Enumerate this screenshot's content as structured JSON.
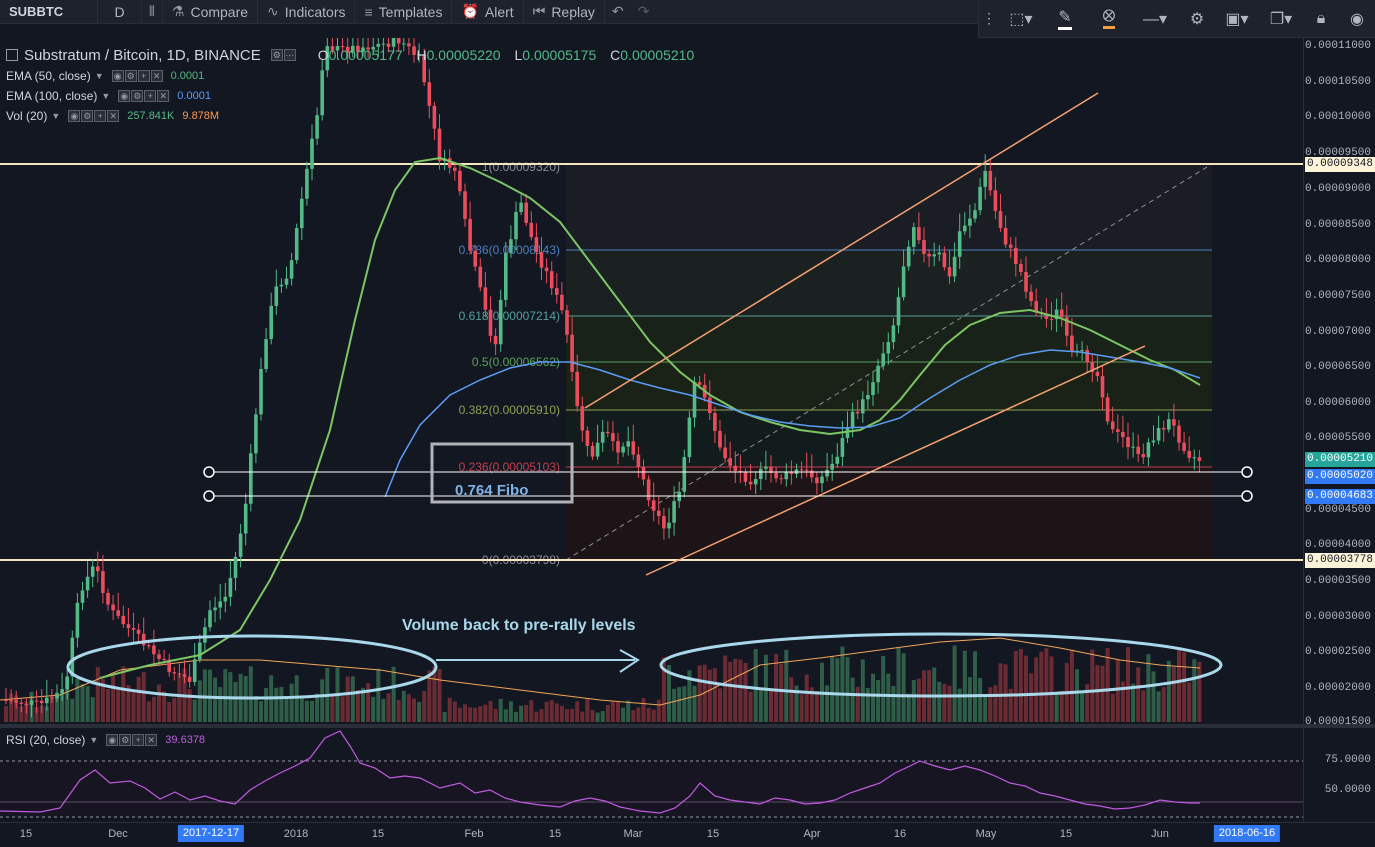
{
  "toolbar": {
    "symbol": "SUBBTC",
    "interval": "D",
    "compare": "Compare",
    "indicators": "Indicators",
    "templates": "Templates",
    "alert": "Alert",
    "replay": "Replay"
  },
  "legend": {
    "title": "Substratum / Bitcoin, 1D, BINANCE",
    "ohlc": {
      "o_key": "O",
      "o": "0.00005177",
      "h_key": "H",
      "h": "0.00005220",
      "l_key": "L",
      "l": "0.00005175",
      "c_key": "C",
      "c": "0.00005210"
    },
    "ema50": {
      "name": "EMA (50, close)",
      "value": "0.0001"
    },
    "ema100": {
      "name": "EMA (100, close)",
      "value": "0.0001"
    },
    "vol": {
      "name": "Vol (20)",
      "value1": "257.841K",
      "value2": "9.878M"
    },
    "rsi": {
      "name": "RSI (20, close)",
      "value": "39.6378"
    }
  },
  "price_axis": {
    "ticks": [
      "0.00011000",
      "0.00010500",
      "0.00010000",
      "0.00009500",
      "0.00009000",
      "0.00008500",
      "0.00008000",
      "0.00007500",
      "0.00007000",
      "0.00006500",
      "0.00006000",
      "0.00005500",
      "0.00004500",
      "0.00004000",
      "0.00003500",
      "0.00003000",
      "0.00002500",
      "0.00002000",
      "0.00001500"
    ],
    "tags": {
      "upper_line": "0.00009348",
      "last_price": "0.00005210",
      "line_a": "0.00005020",
      "line_b": "0.00004683",
      "lower_line": "0.00003778"
    }
  },
  "rsi_axis": {
    "ticks": [
      "75.0000",
      "50.0000"
    ]
  },
  "time_axis": {
    "labels": [
      "15",
      "Dec",
      "2018",
      "15",
      "Feb",
      "15",
      "Mar",
      "15",
      "Apr",
      "16",
      "May",
      "15",
      "Jun"
    ],
    "tag_left": "2017-12-17",
    "tag_right": "2018-06-16"
  },
  "fib": {
    "level_1": "1(0.00009320)",
    "level_786": "0.786(0.00008143)",
    "level_618": "0.618(0.00007214)",
    "level_5": "0.5(0.00006562)",
    "level_382": "0.382(0.00005910)",
    "level_236": "0.236(0.00005103)",
    "level_0": "0(0.00003798)"
  },
  "annotations": {
    "fibo_box": "0.764 Fibo",
    "volume_note": "Volume back to pre-rally levels"
  },
  "colors": {
    "bg": "#131722",
    "up": "#53b987",
    "down": "#eb4d5c",
    "ema50": "#7cc464",
    "ema100": "#5b9cf6",
    "channel": "#f7a072",
    "ellipse": "#a8d8ea",
    "rsi": "#c05be0"
  },
  "icons": [
    "candles-icon",
    "compare-icon",
    "indicators-icon",
    "templates-icon",
    "alert-icon",
    "replay-icon",
    "undo-icon",
    "redo-icon",
    "select-icon",
    "brush-icon",
    "fill-icon",
    "line-style-icon",
    "gear-icon",
    "layout-icon",
    "copy-icon",
    "lock-icon",
    "eye-icon"
  ]
}
